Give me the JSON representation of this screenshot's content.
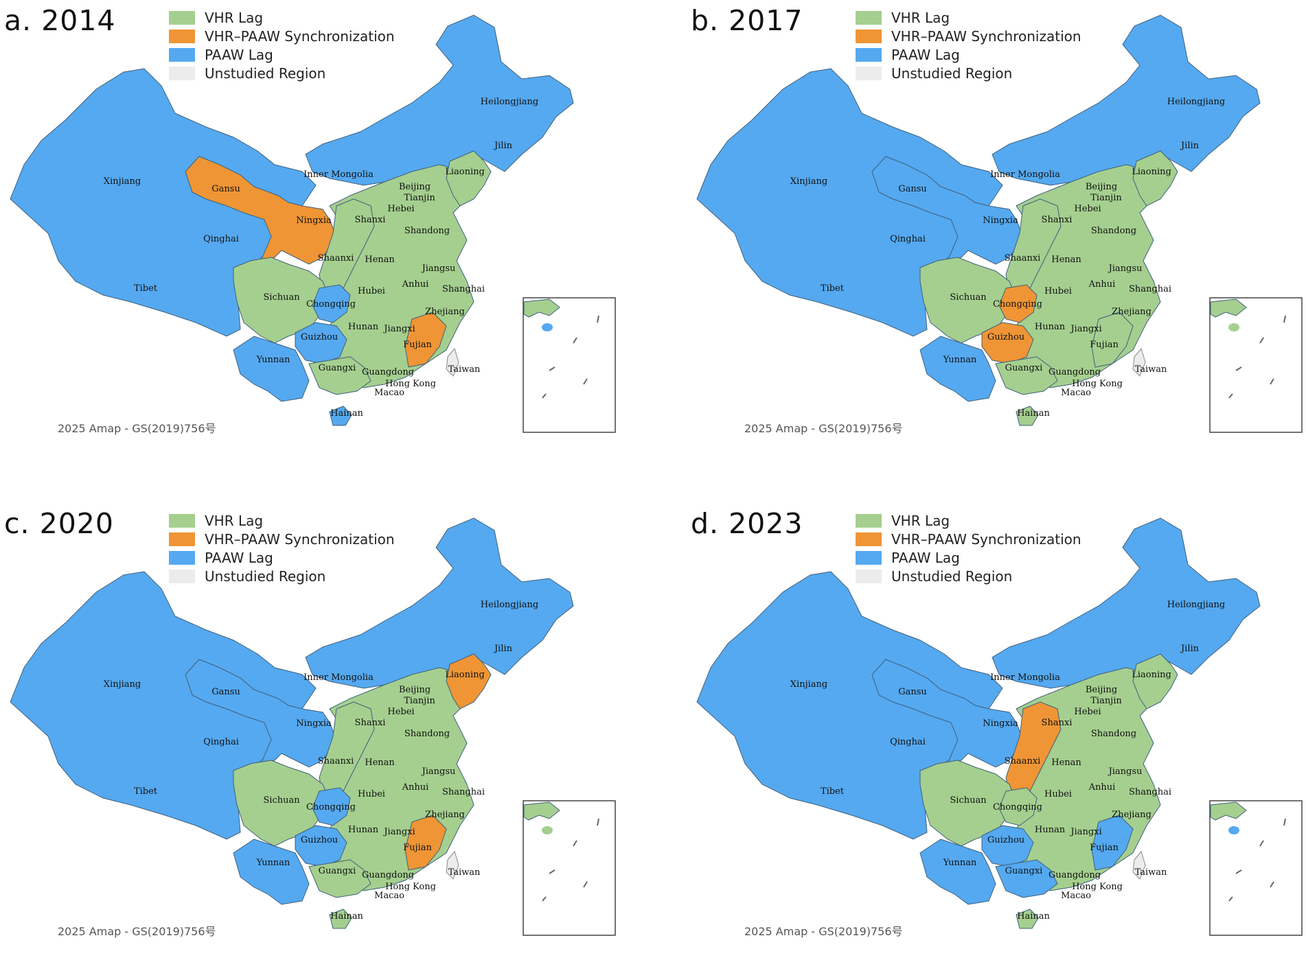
{
  "colors": {
    "VHR Lag": "#a5cf8f",
    "VHR–PAAW Synchronization": "#ef9535",
    "PAAW Lag": "#55a9f0",
    "Unstudied Region": "#ececec",
    "border": "#3d5f7a"
  },
  "legend": [
    {
      "key": "VHR Lag",
      "label": "VHR Lag"
    },
    {
      "key": "VHR–PAAW Synchronization",
      "label": "VHR–PAAW Synchronization"
    },
    {
      "key": "PAAW Lag",
      "label": "PAAW Lag"
    },
    {
      "key": "Unstudied Region",
      "label": "Unstudied Region"
    }
  ],
  "credit": "2025 Amap - GS(2019)756号",
  "panels": [
    {
      "title": "a. 2014",
      "regions": {
        "north": "PAAW Lag",
        "west": "PAAW Lag",
        "gansu": "VHR–PAAW Synchronization",
        "east": "VHR Lag",
        "sichuan": "VHR Lag",
        "chongqing": "PAAW Lag",
        "guizhou": "PAAW Lag",
        "yunnan": "PAAW Lag",
        "fujian": "VHR–PAAW Synchronization",
        "liaoning": "VHR Lag",
        "shanxi_shaanxi": "VHR Lag",
        "guangxi": "VHR Lag",
        "hainan": "PAAW Lag",
        "inset_island": "PAAW Lag"
      }
    },
    {
      "title": "b. 2017",
      "regions": {
        "north": "PAAW Lag",
        "west": "PAAW Lag",
        "gansu": "PAAW Lag",
        "east": "VHR Lag",
        "sichuan": "VHR Lag",
        "chongqing": "VHR–PAAW Synchronization",
        "guizhou": "VHR–PAAW Synchronization",
        "yunnan": "PAAW Lag",
        "fujian": "VHR Lag",
        "liaoning": "VHR Lag",
        "shanxi_shaanxi": "VHR Lag",
        "guangxi": "VHR Lag",
        "hainan": "VHR Lag",
        "inset_island": "VHR Lag"
      }
    },
    {
      "title": "c. 2020",
      "regions": {
        "north": "PAAW Lag",
        "west": "PAAW Lag",
        "gansu": "PAAW Lag",
        "east": "VHR Lag",
        "sichuan": "VHR Lag",
        "chongqing": "PAAW Lag",
        "guizhou": "PAAW Lag",
        "yunnan": "PAAW Lag",
        "fujian": "VHR–PAAW Synchronization",
        "liaoning": "VHR–PAAW Synchronization",
        "shanxi_shaanxi": "VHR Lag",
        "guangxi": "VHR Lag",
        "hainan": "VHR Lag",
        "inset_island": "VHR Lag"
      }
    },
    {
      "title": "d. 2023",
      "regions": {
        "north": "PAAW Lag",
        "west": "PAAW Lag",
        "gansu": "PAAW Lag",
        "east": "VHR Lag",
        "sichuan": "VHR Lag",
        "chongqing": "VHR Lag",
        "guizhou": "PAAW Lag",
        "yunnan": "PAAW Lag",
        "fujian": "PAAW Lag",
        "liaoning": "VHR Lag",
        "shanxi_shaanxi": "VHR–PAAW Synchronization",
        "guangxi": "PAAW Lag",
        "hainan": "VHR Lag",
        "inset_island": "PAAW Lag"
      }
    }
  ],
  "province_labels": [
    "Heilongjiang",
    "Jilin",
    "Liaoning",
    "Inner Mongolia",
    "Xinjiang",
    "Gansu",
    "Beijing",
    "Tianjin",
    "Hebei",
    "Ningxia",
    "Shanxi",
    "Shandong",
    "Qinghai",
    "Shaanxi",
    "Henan",
    "Jiangsu",
    "Tibet",
    "Sichuan",
    "Hubei",
    "Anhui",
    "Shanghai",
    "Chongqing",
    "Zhejiang",
    "Hunan",
    "Jiangxi",
    "Guizhou",
    "Fujian",
    "Yunnan",
    "Guangxi",
    "Guangdong",
    "Taiwan",
    "Hong Kong",
    "Macao",
    "Hainan"
  ]
}
